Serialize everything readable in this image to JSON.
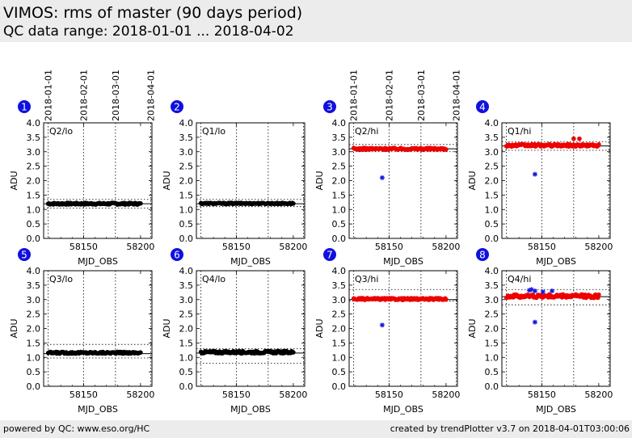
{
  "header": {
    "title": "VIMOS: rms of master (90 days period)",
    "subtitle": "QC data range: 2018-01-01 ... 2018-04-02"
  },
  "footer": {
    "left": "powered by QC: www.eso.org/HC",
    "right": "created by trendPlotter v3.7 on 2018-04-01T03:00:06"
  },
  "colors": {
    "black_series": "#000000",
    "red_series": "#ee0000",
    "blue_marker": "#1515e0",
    "badge": "#1010e0",
    "background": "#ececec"
  },
  "chart_data": [
    {
      "type": "scatter",
      "number": "1",
      "label": "Q2/lo",
      "xlabel": "MJD_OBS",
      "ylabel": "ADU",
      "ylim": [
        0,
        4
      ],
      "xlim": [
        58115,
        58210
      ],
      "yticks": [
        "0.0",
        "0.5",
        "1.0",
        "1.5",
        "2.0",
        "2.5",
        "3.0",
        "3.5",
        "4.0"
      ],
      "xticks": [
        58150,
        58200
      ],
      "xtick_labels": [
        "58150",
        "58200"
      ],
      "top_date_labels": [
        "2018-01-01",
        "2018-02-01",
        "2018-03-01",
        "2018-04-01"
      ],
      "date_lines": [
        58119,
        58150,
        58178,
        58209
      ],
      "ref_lines": {
        "solid": 1.2,
        "dotted": [
          1.05,
          1.35
        ]
      },
      "series": [
        {
          "color": "black",
          "marker": "dot",
          "x_range": [
            58119,
            58200
          ],
          "values_mean": 1.2,
          "jitter": 0.03
        }
      ]
    },
    {
      "type": "scatter",
      "number": "2",
      "label": "Q1/lo",
      "xlabel": "MJD_OBS",
      "ylabel": "ADU",
      "ylim": [
        0,
        4
      ],
      "xlim": [
        58115,
        58210
      ],
      "yticks": [
        "0.0",
        "0.5",
        "1.0",
        "1.5",
        "2.0",
        "2.5",
        "3.0",
        "3.5",
        "4.0"
      ],
      "xticks": [
        58150,
        58200
      ],
      "xtick_labels": [
        "58150",
        "58200"
      ],
      "top_date_labels": [],
      "date_lines": [
        58119,
        58150,
        58178,
        58209
      ],
      "ref_lines": {
        "solid": 1.2,
        "dotted": [
          1.1,
          1.35
        ]
      },
      "series": [
        {
          "color": "black",
          "marker": "dot",
          "x_range": [
            58119,
            58200
          ],
          "values_mean": 1.21,
          "jitter": 0.02
        }
      ]
    },
    {
      "type": "scatter",
      "number": "3",
      "label": "Q2/hi",
      "xlabel": "MJD_OBS",
      "ylabel": "ADU",
      "ylim": [
        0,
        4
      ],
      "xlim": [
        58115,
        58210
      ],
      "yticks": [
        "0.0",
        "0.5",
        "1.0",
        "1.5",
        "2.0",
        "2.5",
        "3.0",
        "3.5",
        "4.0"
      ],
      "xticks": [
        58150,
        58200
      ],
      "xtick_labels": [
        "58150",
        "58200"
      ],
      "top_date_labels": [
        "2018-01-01",
        "2018-02-01",
        "2018-03-01",
        "2018-04-01"
      ],
      "date_lines": [
        58119,
        58150,
        58178,
        58209
      ],
      "ref_lines": {
        "solid": 3.1,
        "dotted": [
          3.0,
          3.25
        ]
      },
      "series": [
        {
          "color": "red",
          "marker": "dot",
          "x_range": [
            58119,
            58200
          ],
          "values_mean": 3.1,
          "jitter": 0.03
        }
      ],
      "outliers": [
        {
          "x": 58144,
          "y": 2.1
        }
      ]
    },
    {
      "type": "scatter",
      "number": "4",
      "label": "Q1/hi",
      "xlabel": "MJD_OBS",
      "ylabel": "ADU",
      "ylim": [
        0,
        4
      ],
      "xlim": [
        58115,
        58210
      ],
      "yticks": [
        "0.0",
        "0.5",
        "1.0",
        "1.5",
        "2.0",
        "2.5",
        "3.0",
        "3.5",
        "4.0"
      ],
      "xticks": [
        58150,
        58200
      ],
      "xtick_labels": [
        "58150",
        "58200"
      ],
      "top_date_labels": [],
      "date_lines": [
        58119,
        58150,
        58178,
        58209
      ],
      "ref_lines": {
        "solid": 3.2,
        "dotted": [
          3.05,
          3.35
        ]
      },
      "series": [
        {
          "color": "red",
          "marker": "dot",
          "x_range": [
            58119,
            58200
          ],
          "values_mean": 3.22,
          "jitter": 0.04,
          "extra_points": [
            [
              58178,
              3.45
            ],
            [
              58183,
              3.45
            ]
          ]
        }
      ],
      "outliers": [
        {
          "x": 58144,
          "y": 2.22
        }
      ]
    },
    {
      "type": "scatter",
      "number": "5",
      "label": "Q3/lo",
      "xlabel": "MJD_OBS",
      "ylabel": "ADU",
      "ylim": [
        0,
        4
      ],
      "xlim": [
        58115,
        58210
      ],
      "yticks": [
        "0.0",
        "0.5",
        "1.0",
        "1.5",
        "2.0",
        "2.5",
        "3.0",
        "3.5",
        "4.0"
      ],
      "xticks": [
        58150,
        58200
      ],
      "xtick_labels": [
        "58150",
        "58200"
      ],
      "top_date_labels": [],
      "date_lines": [
        58119,
        58150,
        58178,
        58209
      ],
      "ref_lines": {
        "solid": 1.13,
        "dotted": [
          0.98,
          1.45
        ]
      },
      "series": [
        {
          "color": "black",
          "marker": "dot",
          "x_range": [
            58119,
            58200
          ],
          "values_mean": 1.16,
          "jitter": 0.03
        }
      ]
    },
    {
      "type": "scatter",
      "number": "6",
      "label": "Q4/lo",
      "xlabel": "MJD_OBS",
      "ylabel": "ADU",
      "ylim": [
        0,
        4
      ],
      "xlim": [
        58115,
        58210
      ],
      "yticks": [
        "0.0",
        "0.5",
        "1.0",
        "1.5",
        "2.0",
        "2.5",
        "3.0",
        "3.5",
        "4.0"
      ],
      "xticks": [
        58150,
        58200
      ],
      "xtick_labels": [
        "58150",
        "58200"
      ],
      "top_date_labels": [],
      "date_lines": [
        58119,
        58150,
        58178,
        58209
      ],
      "ref_lines": {
        "solid": 1.15,
        "dotted": [
          0.8,
          1.3
        ]
      },
      "series": [
        {
          "color": "black",
          "marker": "dot",
          "x_range": [
            58119,
            58200
          ],
          "values_mean": 1.18,
          "jitter": 0.04
        }
      ]
    },
    {
      "type": "scatter",
      "number": "7",
      "label": "Q3/hi",
      "xlabel": "MJD_OBS",
      "ylabel": "ADU",
      "ylim": [
        0,
        4
      ],
      "xlim": [
        58115,
        58210
      ],
      "yticks": [
        "0.0",
        "0.5",
        "1.0",
        "1.5",
        "2.0",
        "2.5",
        "3.0",
        "3.5",
        "4.0"
      ],
      "xticks": [
        58150,
        58200
      ],
      "xtick_labels": [
        "58150",
        "58200"
      ],
      "top_date_labels": [],
      "date_lines": [
        58119,
        58150,
        58178,
        58209
      ],
      "ref_lines": {
        "solid": 3.0,
        "dotted": [
          2.95,
          3.35
        ]
      },
      "series": [
        {
          "color": "red",
          "marker": "dot",
          "x_range": [
            58119,
            58200
          ],
          "values_mean": 3.02,
          "jitter": 0.03
        }
      ],
      "outliers": [
        {
          "x": 58144,
          "y": 2.12
        }
      ]
    },
    {
      "type": "scatter",
      "number": "8",
      "label": "Q4/hi",
      "xlabel": "MJD_OBS",
      "ylabel": "ADU",
      "ylim": [
        0,
        4
      ],
      "xlim": [
        58115,
        58210
      ],
      "yticks": [
        "0.0",
        "0.5",
        "1.0",
        "1.5",
        "2.0",
        "2.5",
        "3.0",
        "3.5",
        "4.0"
      ],
      "xticks": [
        58150,
        58200
      ],
      "xtick_labels": [
        "58150",
        "58200"
      ],
      "top_date_labels": [],
      "date_lines": [
        58119,
        58150,
        58178,
        58209
      ],
      "ref_lines": {
        "solid": 3.1,
        "dotted": [
          2.82,
          3.35
        ]
      },
      "series": [
        {
          "color": "red",
          "marker": "dot",
          "x_range": [
            58119,
            58200
          ],
          "values_mean": 3.12,
          "jitter": 0.06
        }
      ],
      "outliers": [
        {
          "x": 58139,
          "y": 3.32
        },
        {
          "x": 58141,
          "y": 3.35
        },
        {
          "x": 58144,
          "y": 3.3
        },
        {
          "x": 58151,
          "y": 3.27
        },
        {
          "x": 58159,
          "y": 3.3
        },
        {
          "x": 58144,
          "y": 2.22
        }
      ]
    }
  ]
}
